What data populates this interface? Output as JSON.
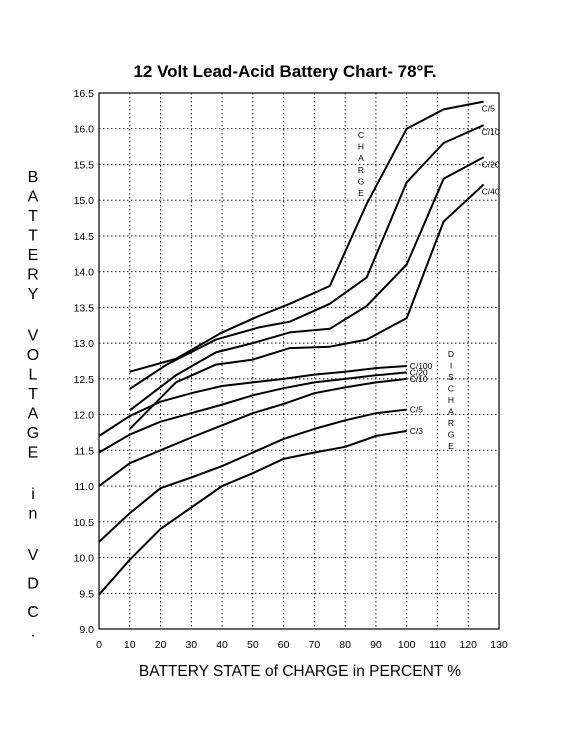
{
  "chart_data": {
    "type": "line",
    "title": "12 Volt Lead-Acid Battery Chart- 78°F.",
    "xlabel": "BATTERY STATE of CHARGE in PERCENT %",
    "ylabel": "BATTERY VOLTAGE in V.D.C.",
    "xlim": [
      0,
      130
    ],
    "ylim": [
      9.0,
      16.5
    ],
    "xticks": [
      "0",
      "10",
      "20",
      "30",
      "40",
      "50",
      "60",
      "70",
      "80",
      "90",
      "100",
      "110",
      "120",
      "130"
    ],
    "yticks": [
      "9.0",
      "9.5",
      "10.0",
      "10.5",
      "11.0",
      "11.5",
      "12.0",
      "12.5",
      "13.0",
      "13.5",
      "14.0",
      "14.5",
      "15.0",
      "15.5",
      "16.0",
      "16.5"
    ],
    "grid": true,
    "annotations": {
      "charge": "CHARGE",
      "discharge": "DISCHARGE"
    },
    "series": [
      {
        "name": "C/5",
        "group": "charge",
        "x": [
          10,
          25,
          40,
          52,
          62,
          75,
          87,
          100,
          112,
          125
        ],
        "y": [
          12.6,
          12.78,
          13.15,
          13.38,
          13.55,
          13.8,
          14.95,
          16.0,
          16.27,
          16.38
        ]
      },
      {
        "name": "C/10",
        "group": "charge",
        "x": [
          10,
          22,
          38,
          52,
          62,
          75,
          87,
          100,
          112,
          125
        ],
        "y": [
          12.36,
          12.7,
          13.05,
          13.22,
          13.3,
          13.55,
          13.92,
          15.25,
          15.8,
          16.05
        ]
      },
      {
        "name": "C/20",
        "group": "charge",
        "x": [
          10,
          25,
          38,
          50,
          62,
          75,
          87,
          100,
          112,
          125
        ],
        "y": [
          12.06,
          12.55,
          12.87,
          13.0,
          13.15,
          13.2,
          13.52,
          14.1,
          15.3,
          15.6
        ]
      },
      {
        "name": "C/40",
        "group": "charge",
        "x": [
          10,
          25,
          38,
          50,
          62,
          75,
          87,
          100,
          112,
          125
        ],
        "y": [
          11.8,
          12.45,
          12.7,
          12.77,
          12.93,
          12.95,
          13.05,
          13.35,
          14.7,
          15.22
        ]
      },
      {
        "name": "C/100",
        "group": "discharge",
        "x": [
          0,
          10,
          20,
          30,
          40,
          50,
          60,
          70,
          80,
          90,
          100
        ],
        "y": [
          11.7,
          11.98,
          12.18,
          12.3,
          12.4,
          12.45,
          12.5,
          12.56,
          12.6,
          12.65,
          12.68
        ]
      },
      {
        "name": "C/20",
        "group": "discharge",
        "x": [
          0,
          10,
          20,
          30,
          40,
          50,
          60,
          70,
          80,
          90,
          100
        ],
        "y": [
          11.47,
          11.72,
          11.9,
          12.02,
          12.14,
          12.27,
          12.37,
          12.45,
          12.5,
          12.55,
          12.59
        ]
      },
      {
        "name": "C/10",
        "group": "discharge",
        "x": [
          0,
          10,
          20,
          30,
          40,
          50,
          60,
          70,
          80,
          90,
          100
        ],
        "y": [
          11.0,
          11.32,
          11.5,
          11.68,
          11.85,
          12.02,
          12.15,
          12.3,
          12.38,
          12.45,
          12.5
        ]
      },
      {
        "name": "C/5",
        "group": "discharge",
        "x": [
          0,
          10,
          20,
          30,
          40,
          50,
          60,
          70,
          80,
          90,
          100
        ],
        "y": [
          10.22,
          10.62,
          10.97,
          11.12,
          11.28,
          11.47,
          11.66,
          11.8,
          11.92,
          12.02,
          12.07
        ]
      },
      {
        "name": "C/3",
        "group": "discharge",
        "x": [
          0,
          10,
          20,
          30,
          40,
          50,
          60,
          70,
          80,
          90,
          100
        ],
        "y": [
          9.48,
          9.97,
          10.4,
          10.7,
          11.0,
          11.18,
          11.38,
          11.47,
          11.55,
          11.7,
          11.77
        ]
      }
    ]
  }
}
